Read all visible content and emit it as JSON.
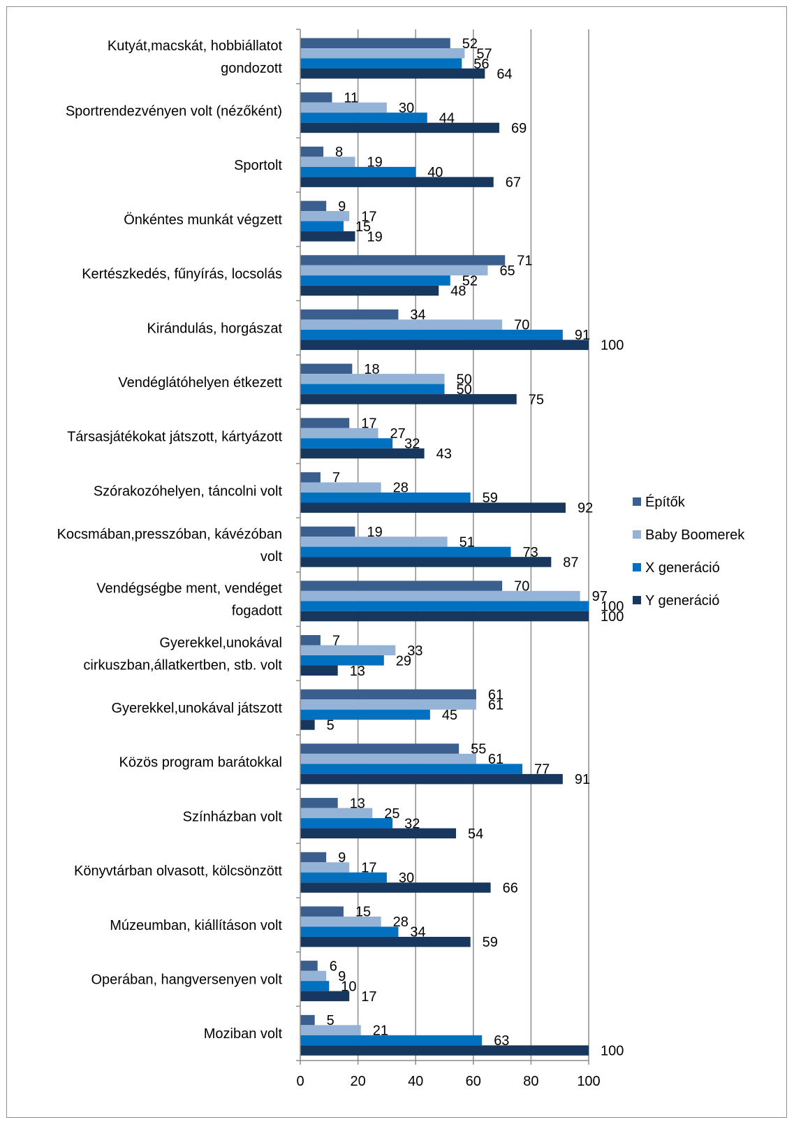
{
  "chart_data": {
    "type": "bar",
    "orientation": "horizontal",
    "categories": [
      [
        "Kutyát,macskát, hobbiállatot",
        "gondozott"
      ],
      [
        "Sportrendezvényen volt (nézőként)"
      ],
      [
        "Sportolt"
      ],
      [
        "Önkéntes munkát végzett"
      ],
      [
        "Kertészkedés, fűnyírás, locsolás"
      ],
      [
        "Kirándulás, horgászat"
      ],
      [
        "Vendéglátóhelyen étkezett"
      ],
      [
        "Társasjátékokat játszott, kártyázott"
      ],
      [
        "Szórakozóhelyen, táncolni volt"
      ],
      [
        "Kocsmában,presszóban,  kávézóban",
        "volt"
      ],
      [
        "Vendégségbe ment, vendéget",
        "fogadott"
      ],
      [
        "Gyerekkel,unokával",
        "cirkuszban,állatkertben, stb. volt"
      ],
      [
        "Gyerekkel,unokával játszott"
      ],
      [
        "Közös program barátokkal"
      ],
      [
        "Színházban volt"
      ],
      [
        "Könyvtárban olvasott, kölcsönzött"
      ],
      [
        "Múzeumban, kiállításon volt"
      ],
      [
        "Operában, hangversenyen volt"
      ],
      [
        "Moziban volt"
      ]
    ],
    "series": [
      {
        "name": "Építők",
        "color": "#3a5f8f",
        "values": [
          52,
          11,
          8,
          9,
          71,
          34,
          18,
          17,
          7,
          19,
          70,
          7,
          61,
          55,
          13,
          9,
          15,
          6,
          5
        ]
      },
      {
        "name": "Baby Boomerek",
        "color": "#95b3d7",
        "values": [
          57,
          30,
          19,
          17,
          65,
          70,
          50,
          27,
          28,
          51,
          97,
          33,
          61,
          61,
          25,
          17,
          28,
          9,
          21
        ]
      },
      {
        "name": "X generáció",
        "color": "#0070c0",
        "values": [
          56,
          44,
          40,
          15,
          52,
          91,
          50,
          32,
          59,
          73,
          100,
          29,
          45,
          77,
          32,
          30,
          34,
          10,
          63
        ]
      },
      {
        "name": "Y generáció",
        "color": "#17375e",
        "values": [
          64,
          69,
          67,
          19,
          48,
          100,
          75,
          43,
          92,
          87,
          100,
          13,
          5,
          91,
          54,
          66,
          59,
          17,
          100
        ]
      }
    ],
    "xlim": [
      0,
      100
    ],
    "x_ticks": [
      0,
      20,
      40,
      60,
      80,
      100
    ],
    "grid": "vertical",
    "legend_position": "right"
  }
}
